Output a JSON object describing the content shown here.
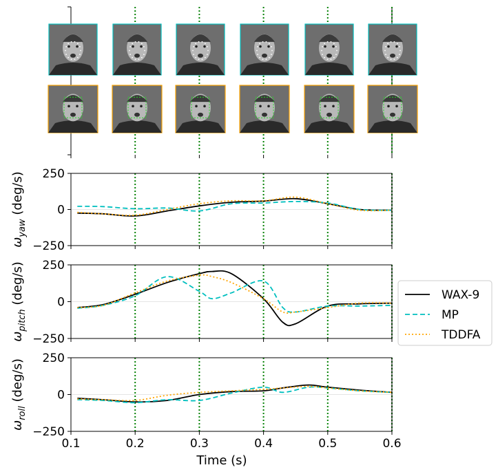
{
  "chart_data": [
    {
      "type": "image-strip",
      "description_rows": [
        "top-row-frames",
        "bottom-row-landmark-frames"
      ],
      "frame_count": 6,
      "frame_border_colors": {
        "top": "#00bfbf",
        "bottom": "#ffa500"
      },
      "event_lines_x": [
        0.2,
        0.3,
        0.4,
        0.5,
        0.6
      ]
    },
    {
      "type": "line",
      "id": "yaw",
      "ylabel_symbol": "ω",
      "ylabel_subscript": "yaw",
      "ylabel_unit": " (deg/s)",
      "xlim": [
        0.1,
        0.6
      ],
      "ylim": [
        -250,
        250
      ],
      "yticks": [
        "250",
        "0",
        "−250"
      ],
      "ytick_values": [
        250,
        0,
        -250
      ],
      "x": [
        0.11,
        0.15,
        0.2,
        0.25,
        0.3,
        0.35,
        0.4,
        0.45,
        0.5,
        0.55,
        0.6
      ],
      "series": [
        {
          "name": "WAX-9",
          "color": "#000000",
          "dash": "solid",
          "values": [
            -25,
            -30,
            -45,
            -10,
            25,
            50,
            58,
            75,
            40,
            0,
            -5
          ]
        },
        {
          "name": "MP",
          "color": "#00bfbf",
          "dash": "dashed",
          "values": [
            22,
            20,
            5,
            10,
            -10,
            40,
            45,
            55,
            45,
            0,
            -5
          ]
        },
        {
          "name": "TDDFA",
          "color": "#ffa500",
          "dash": "dotted",
          "values": [
            -20,
            -30,
            -40,
            0,
            40,
            60,
            60,
            85,
            40,
            -5,
            -5
          ]
        }
      ]
    },
    {
      "type": "line",
      "id": "pitch",
      "ylabel_symbol": "ω",
      "ylabel_subscript": "pitch",
      "ylabel_unit": " (deg/s)",
      "xlim": [
        0.1,
        0.6
      ],
      "ylim": [
        -250,
        250
      ],
      "yticks": [
        "250",
        "0",
        "−250"
      ],
      "ytick_values": [
        250,
        0,
        -250
      ],
      "x": [
        0.11,
        0.15,
        0.2,
        0.25,
        0.3,
        0.32,
        0.35,
        0.4,
        0.43,
        0.45,
        0.5,
        0.55,
        0.6
      ],
      "series": [
        {
          "name": "WAX-9",
          "color": "#000000",
          "dash": "solid",
          "values": [
            -40,
            -20,
            50,
            130,
            190,
            205,
            190,
            20,
            -140,
            -150,
            -30,
            -15,
            -10
          ]
        },
        {
          "name": "MP",
          "color": "#00bfbf",
          "dash": "dashed",
          "values": [
            -45,
            -25,
            40,
            170,
            70,
            20,
            60,
            140,
            -40,
            -70,
            -30,
            -30,
            -25
          ]
        },
        {
          "name": "TDDFA",
          "color": "#ffa500",
          "dash": "dotted",
          "values": [
            -40,
            -25,
            60,
            140,
            180,
            170,
            130,
            20,
            -70,
            -70,
            -40,
            -10,
            -10
          ]
        }
      ]
    },
    {
      "type": "line",
      "id": "roll",
      "ylabel_symbol": "ω",
      "ylabel_subscript": "roll",
      "ylabel_unit": " (deg/s)",
      "xlabel": "Time (s)",
      "xlim": [
        0.1,
        0.6
      ],
      "ylim": [
        -250,
        250
      ],
      "xticks": [
        "0.1",
        "0.2",
        "0.3",
        "0.4",
        "0.5",
        "0.6"
      ],
      "xtick_values": [
        0.1,
        0.2,
        0.3,
        0.4,
        0.5,
        0.6
      ],
      "yticks": [
        "250",
        "0",
        "−250"
      ],
      "ytick_values": [
        250,
        0,
        -250
      ],
      "x": [
        0.11,
        0.15,
        0.2,
        0.25,
        0.3,
        0.35,
        0.4,
        0.43,
        0.47,
        0.5,
        0.55,
        0.6
      ],
      "series": [
        {
          "name": "WAX-9",
          "color": "#000000",
          "dash": "solid",
          "values": [
            -25,
            -35,
            -50,
            -40,
            0,
            20,
            25,
            45,
            65,
            50,
            30,
            15
          ]
        },
        {
          "name": "MP",
          "color": "#00bfbf",
          "dash": "dashed",
          "values": [
            -35,
            -40,
            -55,
            -35,
            -40,
            10,
            50,
            15,
            50,
            45,
            25,
            15
          ]
        },
        {
          "name": "TDDFA",
          "color": "#ffa500",
          "dash": "dotted",
          "values": [
            -30,
            -35,
            -40,
            -5,
            15,
            25,
            35,
            45,
            55,
            45,
            25,
            15
          ]
        }
      ]
    }
  ],
  "legend": {
    "entries": [
      {
        "label": "WAX-9",
        "color": "#000000",
        "dash": "solid"
      },
      {
        "label": "MP",
        "color": "#00bfbf",
        "dash": "dashed"
      },
      {
        "label": "TDDFA",
        "color": "#ffa500",
        "dash": "dotted"
      }
    ],
    "placement": "right of middle panel"
  },
  "colors": {
    "event_line": "#008000",
    "zero_line": "#dddddd"
  }
}
